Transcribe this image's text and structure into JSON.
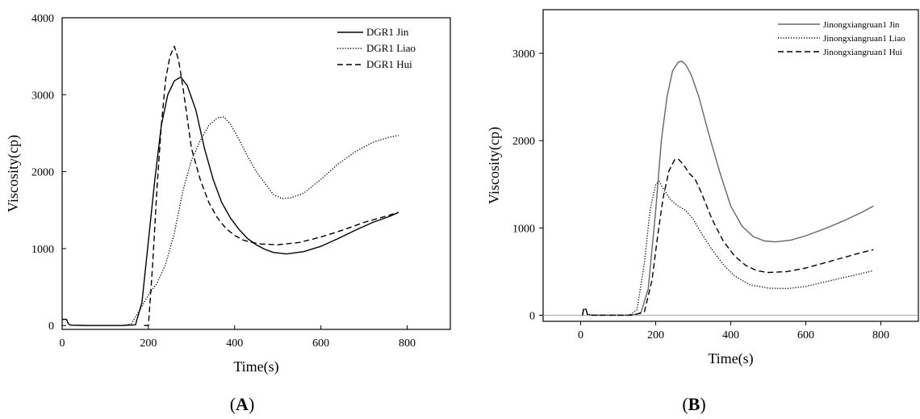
{
  "panels": [
    {
      "open": "(",
      "letter": "A",
      "close": ")"
    },
    {
      "open": "(",
      "letter": "B",
      "close": ")"
    }
  ],
  "chart_data": [
    {
      "type": "line",
      "xlabel": "Time(s)",
      "ylabel": "Viscosity(cp)",
      "xlim": [
        0,
        900
      ],
      "ylim": [
        -50,
        4000
      ],
      "xticks": [
        0,
        200,
        400,
        600,
        800
      ],
      "yticks": [
        0,
        1000,
        2000,
        3000,
        4000
      ],
      "legend_position": "top-right",
      "series": [
        {
          "name": "DGR1 Jin",
          "style": "solid",
          "points": [
            [
              0,
              80
            ],
            [
              10,
              80
            ],
            [
              15,
              20
            ],
            [
              20,
              5
            ],
            [
              60,
              0
            ],
            [
              100,
              0
            ],
            [
              140,
              0
            ],
            [
              170,
              10
            ],
            [
              185,
              300
            ],
            [
              200,
              1100
            ],
            [
              215,
              1900
            ],
            [
              230,
              2600
            ],
            [
              245,
              3000
            ],
            [
              260,
              3180
            ],
            [
              275,
              3230
            ],
            [
              290,
              3120
            ],
            [
              310,
              2800
            ],
            [
              330,
              2300
            ],
            [
              350,
              1900
            ],
            [
              370,
              1600
            ],
            [
              390,
              1400
            ],
            [
              410,
              1250
            ],
            [
              430,
              1130
            ],
            [
              450,
              1050
            ],
            [
              470,
              990
            ],
            [
              490,
              950
            ],
            [
              520,
              930
            ],
            [
              560,
              960
            ],
            [
              600,
              1030
            ],
            [
              640,
              1130
            ],
            [
              680,
              1240
            ],
            [
              720,
              1340
            ],
            [
              760,
              1420
            ],
            [
              780,
              1470
            ]
          ]
        },
        {
          "name": "DGR1 Liao",
          "style": "dotted",
          "points": [
            [
              0,
              80
            ],
            [
              10,
              80
            ],
            [
              15,
              20
            ],
            [
              20,
              5
            ],
            [
              60,
              0
            ],
            [
              100,
              0
            ],
            [
              140,
              0
            ],
            [
              160,
              20
            ],
            [
              180,
              200
            ],
            [
              200,
              400
            ],
            [
              220,
              550
            ],
            [
              240,
              800
            ],
            [
              260,
              1200
            ],
            [
              280,
              1750
            ],
            [
              300,
              2150
            ],
            [
              320,
              2400
            ],
            [
              340,
              2600
            ],
            [
              360,
              2700
            ],
            [
              375,
              2710
            ],
            [
              390,
              2620
            ],
            [
              410,
              2420
            ],
            [
              430,
              2200
            ],
            [
              450,
              2000
            ],
            [
              470,
              1850
            ],
            [
              490,
              1700
            ],
            [
              510,
              1650
            ],
            [
              530,
              1660
            ],
            [
              560,
              1720
            ],
            [
              600,
              1900
            ],
            [
              640,
              2100
            ],
            [
              680,
              2260
            ],
            [
              720,
              2380
            ],
            [
              760,
              2450
            ],
            [
              780,
              2470
            ]
          ]
        },
        {
          "name": "DGR1 Hui",
          "style": "dashed",
          "points": [
            [
              190,
              0
            ],
            [
              200,
              0
            ],
            [
              210,
              800
            ],
            [
              220,
              1800
            ],
            [
              230,
              2600
            ],
            [
              240,
              3200
            ],
            [
              250,
              3500
            ],
            [
              260,
              3630
            ],
            [
              270,
              3450
            ],
            [
              280,
              3100
            ],
            [
              290,
              2700
            ],
            [
              300,
              2300
            ],
            [
              320,
              1900
            ],
            [
              340,
              1600
            ],
            [
              360,
              1400
            ],
            [
              380,
              1260
            ],
            [
              400,
              1170
            ],
            [
              420,
              1110
            ],
            [
              440,
              1080
            ],
            [
              460,
              1060
            ],
            [
              500,
              1050
            ],
            [
              550,
              1080
            ],
            [
              600,
              1150
            ],
            [
              650,
              1240
            ],
            [
              700,
              1340
            ],
            [
              750,
              1420
            ],
            [
              780,
              1470
            ]
          ]
        }
      ]
    },
    {
      "type": "line",
      "xlabel": "Time(s)",
      "ylabel": "Viscosity(cp)",
      "xlim": [
        -100,
        900
      ],
      "ylim": [
        -70,
        3500
      ],
      "xticks": [
        0,
        200,
        400,
        600,
        800
      ],
      "yticks": [
        0,
        1000,
        2000,
        3000
      ],
      "legend_position": "top-right",
      "series": [
        {
          "name": "Jinongxiangruan1 Jin",
          "style": "solid",
          "color": "#666666",
          "points": [
            [
              5,
              0
            ],
            [
              8,
              70
            ],
            [
              14,
              70
            ],
            [
              18,
              10
            ],
            [
              30,
              0
            ],
            [
              80,
              0
            ],
            [
              130,
              0
            ],
            [
              160,
              20
            ],
            [
              180,
              300
            ],
            [
              200,
              1200
            ],
            [
              215,
              2000
            ],
            [
              230,
              2500
            ],
            [
              245,
              2800
            ],
            [
              260,
              2900
            ],
            [
              270,
              2910
            ],
            [
              280,
              2870
            ],
            [
              295,
              2750
            ],
            [
              315,
              2500
            ],
            [
              340,
              2100
            ],
            [
              370,
              1650
            ],
            [
              400,
              1250
            ],
            [
              430,
              1020
            ],
            [
              460,
              900
            ],
            [
              490,
              850
            ],
            [
              520,
              840
            ],
            [
              560,
              860
            ],
            [
              600,
              910
            ],
            [
              650,
              990
            ],
            [
              700,
              1080
            ],
            [
              750,
              1180
            ],
            [
              780,
              1250
            ]
          ]
        },
        {
          "name": "Jinongxiangruan1 Liao",
          "style": "dotted",
          "points": [
            [
              5,
              0
            ],
            [
              8,
              70
            ],
            [
              14,
              70
            ],
            [
              18,
              10
            ],
            [
              30,
              0
            ],
            [
              80,
              0
            ],
            [
              130,
              0
            ],
            [
              150,
              60
            ],
            [
              170,
              600
            ],
            [
              185,
              1200
            ],
            [
              200,
              1500
            ],
            [
              210,
              1530
            ],
            [
              220,
              1450
            ],
            [
              240,
              1320
            ],
            [
              260,
              1250
            ],
            [
              280,
              1200
            ],
            [
              300,
              1100
            ],
            [
              320,
              950
            ],
            [
              350,
              750
            ],
            [
              380,
              580
            ],
            [
              410,
              450
            ],
            [
              450,
              350
            ],
            [
              500,
              310
            ],
            [
              550,
              305
            ],
            [
              600,
              330
            ],
            [
              650,
              380
            ],
            [
              700,
              430
            ],
            [
              750,
              480
            ],
            [
              780,
              510
            ]
          ]
        },
        {
          "name": "Jinongxiangruan1 Hui",
          "style": "dashed",
          "points": [
            [
              5,
              0
            ],
            [
              8,
              70
            ],
            [
              14,
              70
            ],
            [
              18,
              10
            ],
            [
              30,
              0
            ],
            [
              80,
              0
            ],
            [
              140,
              0
            ],
            [
              170,
              40
            ],
            [
              190,
              400
            ],
            [
              205,
              900
            ],
            [
              220,
              1350
            ],
            [
              235,
              1650
            ],
            [
              250,
              1780
            ],
            [
              260,
              1790
            ],
            [
              275,
              1720
            ],
            [
              290,
              1620
            ],
            [
              305,
              1560
            ],
            [
              320,
              1420
            ],
            [
              350,
              1100
            ],
            [
              380,
              850
            ],
            [
              410,
              680
            ],
            [
              440,
              570
            ],
            [
              470,
              510
            ],
            [
              500,
              490
            ],
            [
              550,
              500
            ],
            [
              600,
              540
            ],
            [
              650,
              600
            ],
            [
              700,
              660
            ],
            [
              750,
              720
            ],
            [
              780,
              750
            ]
          ]
        }
      ]
    }
  ]
}
